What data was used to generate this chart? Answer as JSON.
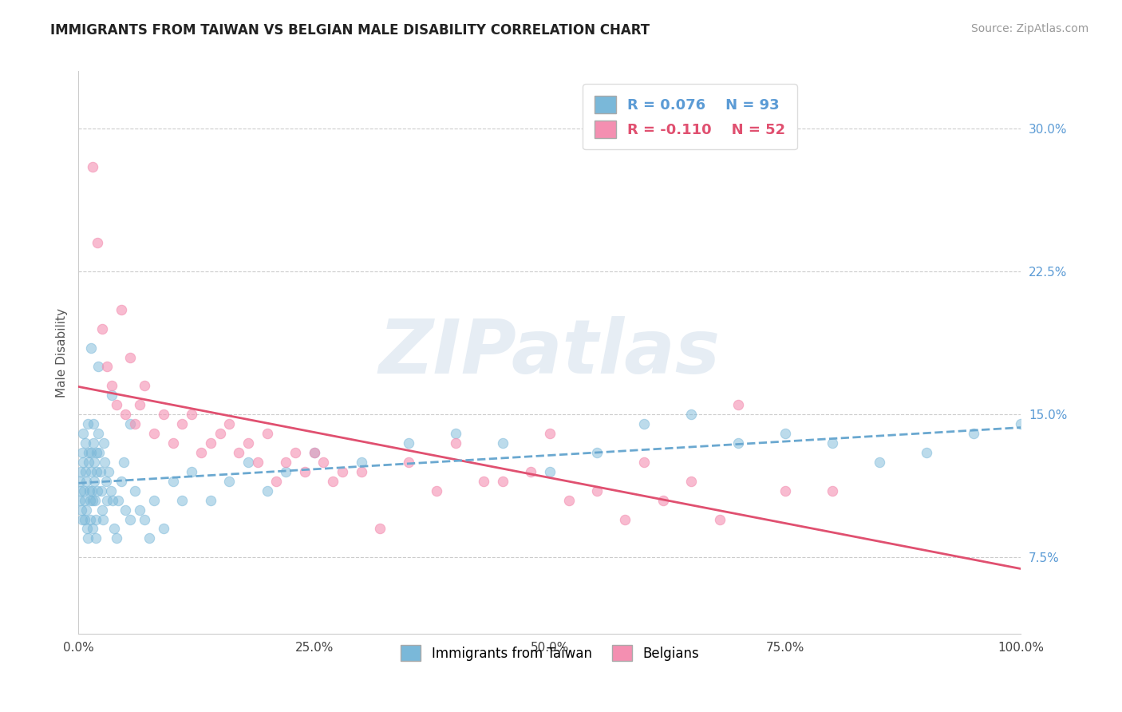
{
  "title": "IMMIGRANTS FROM TAIWAN VS BELGIAN MALE DISABILITY CORRELATION CHART",
  "source": "Source: ZipAtlas.com",
  "ylabel": "Male Disability",
  "watermark_text": "ZIPatlas",
  "xlim": [
    0.0,
    100.0
  ],
  "ylim": [
    3.5,
    33.0
  ],
  "ytick_vals": [
    7.5,
    15.0,
    22.5,
    30.0
  ],
  "xtick_vals": [
    0.0,
    25.0,
    50.0,
    75.0,
    100.0
  ],
  "taiwan_color": "#7ab8d9",
  "belgian_color": "#f48fb1",
  "taiwan_R": 0.076,
  "taiwan_N": 93,
  "belgian_R": -0.11,
  "belgian_N": 52,
  "taiwan_x": [
    0.1,
    0.15,
    0.2,
    0.25,
    0.3,
    0.35,
    0.4,
    0.45,
    0.5,
    0.55,
    0.6,
    0.65,
    0.7,
    0.75,
    0.8,
    0.85,
    0.9,
    0.95,
    1.0,
    1.05,
    1.1,
    1.15,
    1.2,
    1.25,
    1.3,
    1.35,
    1.4,
    1.45,
    1.5,
    1.55,
    1.6,
    1.65,
    1.7,
    1.75,
    1.8,
    1.85,
    1.9,
    1.95,
    2.0,
    2.1,
    2.2,
    2.3,
    2.4,
    2.5,
    2.6,
    2.7,
    2.8,
    2.9,
    3.0,
    3.2,
    3.4,
    3.6,
    3.8,
    4.0,
    4.2,
    4.5,
    4.8,
    5.0,
    5.5,
    6.0,
    6.5,
    7.0,
    7.5,
    8.0,
    9.0,
    10.0,
    11.0,
    12.0,
    14.0,
    16.0,
    18.0,
    20.0,
    22.0,
    25.0,
    30.0,
    35.0,
    40.0,
    45.0,
    50.0,
    55.0,
    60.0,
    65.0,
    70.0,
    75.0,
    80.0,
    85.0,
    90.0,
    95.0,
    100.0,
    1.3,
    2.1,
    3.5,
    5.5
  ],
  "taiwan_y": [
    11.5,
    10.5,
    12.0,
    11.0,
    10.0,
    9.5,
    13.0,
    12.5,
    14.0,
    11.0,
    10.5,
    9.5,
    13.5,
    12.0,
    11.5,
    10.0,
    9.0,
    8.5,
    14.5,
    13.0,
    12.5,
    11.0,
    10.5,
    9.5,
    13.0,
    12.0,
    11.0,
    10.5,
    9.0,
    14.5,
    13.5,
    12.5,
    11.5,
    10.5,
    9.5,
    8.5,
    13.0,
    12.0,
    11.0,
    14.0,
    13.0,
    12.0,
    11.0,
    10.0,
    9.5,
    13.5,
    12.5,
    11.5,
    10.5,
    12.0,
    11.0,
    10.5,
    9.0,
    8.5,
    10.5,
    11.5,
    12.5,
    10.0,
    9.5,
    11.0,
    10.0,
    9.5,
    8.5,
    10.5,
    9.0,
    11.5,
    10.5,
    12.0,
    10.5,
    11.5,
    12.5,
    11.0,
    12.0,
    13.0,
    12.5,
    13.5,
    14.0,
    13.5,
    12.0,
    13.0,
    14.5,
    15.0,
    13.5,
    14.0,
    13.5,
    12.5,
    13.0,
    14.0,
    14.5,
    18.5,
    17.5,
    16.0,
    14.5
  ],
  "belgian_x": [
    1.5,
    2.0,
    2.5,
    3.0,
    3.5,
    4.0,
    4.5,
    5.0,
    5.5,
    6.0,
    6.5,
    7.0,
    8.0,
    9.0,
    10.0,
    11.0,
    12.0,
    13.0,
    14.0,
    15.0,
    16.0,
    17.0,
    18.0,
    19.0,
    20.0,
    21.0,
    22.0,
    23.0,
    24.0,
    25.0,
    26.0,
    27.0,
    28.0,
    30.0,
    32.0,
    35.0,
    38.0,
    40.0,
    43.0,
    45.0,
    48.0,
    50.0,
    52.0,
    55.0,
    58.0,
    60.0,
    62.0,
    65.0,
    68.0,
    70.0,
    75.0,
    80.0
  ],
  "belgian_y": [
    28.0,
    24.0,
    19.5,
    17.5,
    16.5,
    15.5,
    20.5,
    15.0,
    18.0,
    14.5,
    15.5,
    16.5,
    14.0,
    15.0,
    13.5,
    14.5,
    15.0,
    13.0,
    13.5,
    14.0,
    14.5,
    13.0,
    13.5,
    12.5,
    14.0,
    11.5,
    12.5,
    13.0,
    12.0,
    13.0,
    12.5,
    11.5,
    12.0,
    12.0,
    9.0,
    12.5,
    11.0,
    13.5,
    11.5,
    11.5,
    12.0,
    14.0,
    10.5,
    11.0,
    9.5,
    12.5,
    10.5,
    11.5,
    9.5,
    15.5,
    11.0,
    11.0
  ]
}
